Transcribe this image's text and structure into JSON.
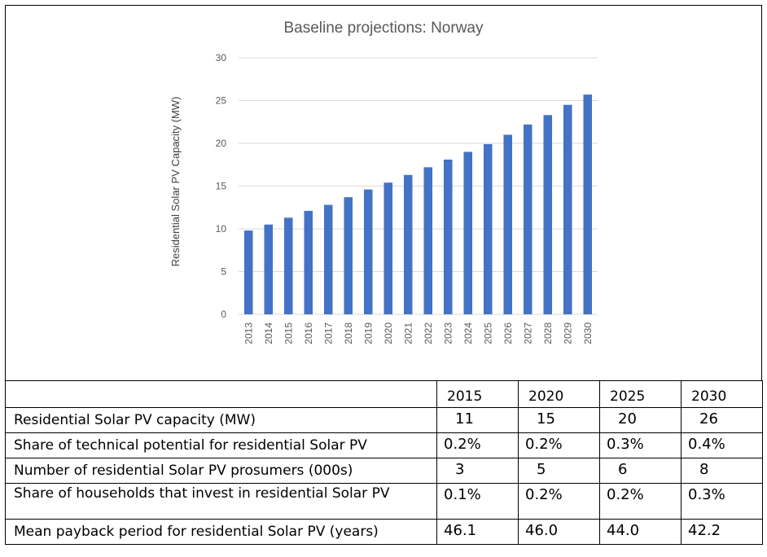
{
  "chart_data": {
    "type": "bar",
    "title": "Baseline projections: Norway",
    "xlabel": "",
    "ylabel": "Residential Solar PV Capacity (MW)",
    "ylim": [
      0,
      30
    ],
    "yticks": [
      0,
      5,
      10,
      15,
      20,
      25,
      30
    ],
    "grid": true,
    "legend": "none",
    "color": "#4472C4",
    "categories": [
      "2013",
      "2014",
      "2015",
      "2016",
      "2017",
      "2018",
      "2019",
      "2020",
      "2021",
      "2022",
      "2023",
      "2024",
      "2025",
      "2026",
      "2027",
      "2028",
      "2029",
      "2030"
    ],
    "values": [
      9.8,
      10.5,
      11.3,
      12.1,
      12.8,
      13.7,
      14.6,
      15.4,
      16.3,
      17.2,
      18.1,
      19.0,
      19.9,
      21.0,
      22.2,
      23.3,
      24.5,
      25.7
    ]
  },
  "table": {
    "years": [
      "2015",
      "2020",
      "2025",
      "2030"
    ],
    "rows": [
      {
        "label": "Residential Solar PV capacity (MW)",
        "values": [
          "11",
          "15",
          "20",
          "26"
        ]
      },
      {
        "label": "Share of technical potential for residential Solar PV",
        "values": [
          "0.2%",
          "0.2%",
          "0.3%",
          "0.4%"
        ]
      },
      {
        "label": "Number of residential Solar PV prosumers (000s)",
        "values": [
          "3",
          "5",
          "6",
          "8"
        ]
      },
      {
        "label": "Share of households that invest in residential Solar PV",
        "values": [
          "0.1%",
          "0.2%",
          "0.2%",
          "0.3%"
        ]
      },
      {
        "label": "Mean payback period for residential Solar PV (years)",
        "values": [
          "46.1",
          "46.0",
          "44.0",
          "42.2"
        ]
      }
    ]
  }
}
